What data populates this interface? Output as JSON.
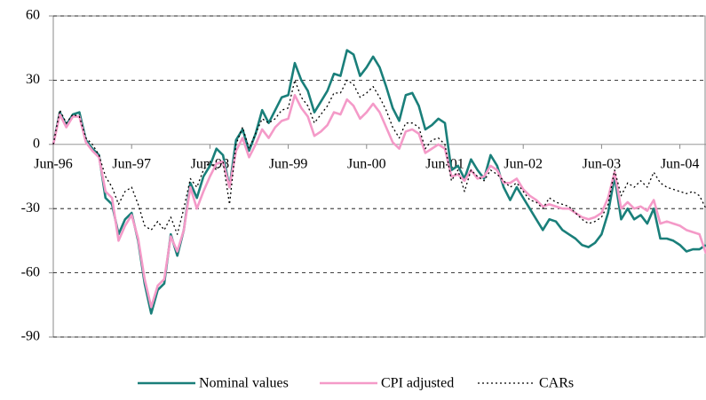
{
  "chart_data": {
    "type": "line",
    "categories": [
      "Jun-96",
      null,
      null,
      null,
      null,
      null,
      null,
      null,
      null,
      null,
      null,
      null,
      "Jun-97",
      null,
      null,
      null,
      null,
      null,
      null,
      null,
      null,
      null,
      null,
      null,
      "Jun-98",
      null,
      null,
      null,
      null,
      null,
      null,
      null,
      null,
      null,
      null,
      null,
      "Jun-99",
      null,
      null,
      null,
      null,
      null,
      null,
      null,
      null,
      null,
      null,
      null,
      "Jun-00",
      null,
      null,
      null,
      null,
      null,
      null,
      null,
      null,
      null,
      null,
      null,
      "Jun-01",
      null,
      null,
      null,
      null,
      null,
      null,
      null,
      null,
      null,
      null,
      null,
      "Jun-02",
      null,
      null,
      null,
      null,
      null,
      null,
      null,
      null,
      null,
      null,
      null,
      "Jun-03",
      null,
      null,
      null,
      null,
      null,
      null,
      null,
      null,
      null,
      null,
      null,
      "Jun-04",
      null,
      null,
      null,
      null
    ],
    "series": [
      {
        "name": "Nominal values",
        "color": "#1a7f7a",
        "dash": "solid",
        "values": [
          0,
          15,
          9,
          14,
          15,
          2,
          -2,
          -5,
          -25,
          -28,
          -42,
          -35,
          -32,
          -45,
          -65,
          -79,
          -68,
          -65,
          -42,
          -52,
          -40,
          -18,
          -25,
          -15,
          -10,
          -2,
          -5,
          -20,
          2,
          7,
          -3,
          5,
          16,
          10,
          16,
          22,
          23,
          38,
          30,
          25,
          15,
          20,
          25,
          33,
          32,
          44,
          42,
          32,
          36,
          41,
          36,
          27,
          17,
          11,
          23,
          24,
          18,
          7,
          9,
          12,
          10,
          -12,
          -10,
          -16,
          -7,
          -12,
          -16,
          -5,
          -10,
          -20,
          -26,
          -20,
          -25,
          -30,
          -35,
          -40,
          -35,
          -36,
          -40,
          -42,
          -44,
          -47,
          -48,
          -46,
          -42,
          -32,
          -15,
          -35,
          -30,
          -35,
          -33,
          -37,
          -30,
          -44,
          -44,
          -45,
          -47,
          -50,
          -49,
          -49,
          -47
        ]
      },
      {
        "name": "CPI adjusted",
        "color": "#f49ac8",
        "dash": "solid",
        "values": [
          0,
          14,
          8,
          13,
          13,
          1,
          -3,
          -6,
          -22,
          -25,
          -45,
          -38,
          -33,
          -44,
          -63,
          -76,
          -66,
          -63,
          -43,
          -50,
          -40,
          -20,
          -30,
          -22,
          -15,
          -9,
          -8,
          -20,
          -3,
          3,
          -6,
          0,
          7,
          3,
          8,
          11,
          12,
          23,
          17,
          13,
          4,
          6,
          9,
          15,
          14,
          21,
          18,
          12,
          15,
          19,
          15,
          8,
          1,
          -2,
          6,
          7,
          5,
          -4,
          -2,
          0,
          -2,
          -15,
          -14,
          -17,
          -12,
          -16,
          -15,
          -10,
          -12,
          -18,
          -18,
          -16,
          -21,
          -24,
          -26,
          -29,
          -28,
          -29,
          -30,
          -30,
          -32,
          -34,
          -35,
          -34,
          -32,
          -25,
          -13,
          -30,
          -27,
          -30,
          -29,
          -31,
          -26,
          -37,
          -36,
          -37,
          -38,
          -40,
          -41,
          -42,
          -51
        ]
      },
      {
        "name": "CARs",
        "color": "#000000",
        "dash": "dotted",
        "values": [
          0,
          16,
          10,
          14,
          13,
          3,
          0,
          -5,
          -15,
          -20,
          -28,
          -22,
          -20,
          -28,
          -38,
          -40,
          -36,
          -40,
          -34,
          -42,
          -30,
          -16,
          -20,
          -12,
          -8,
          -12,
          -8,
          -28,
          0,
          8,
          -2,
          5,
          12,
          10,
          12,
          16,
          17,
          30,
          22,
          18,
          10,
          14,
          18,
          24,
          24,
          30,
          28,
          22,
          24,
          27,
          22,
          16,
          8,
          3,
          10,
          10,
          8,
          -2,
          2,
          3,
          0,
          -17,
          -12,
          -22,
          -12,
          -15,
          -17,
          -12,
          -14,
          -17,
          -20,
          -18,
          -22,
          -26,
          -27,
          -30,
          -25,
          -27,
          -28,
          -29,
          -32,
          -35,
          -37,
          -36,
          -34,
          -28,
          -12,
          -24,
          -18,
          -20,
          -17,
          -20,
          -13,
          -18,
          -20,
          -21,
          -22,
          -23,
          -22,
          -24,
          -30
        ]
      }
    ],
    "ylim": [
      -90,
      60
    ],
    "yticks": [
      -90,
      -60,
      -30,
      0,
      30,
      60
    ],
    "grid": true
  }
}
